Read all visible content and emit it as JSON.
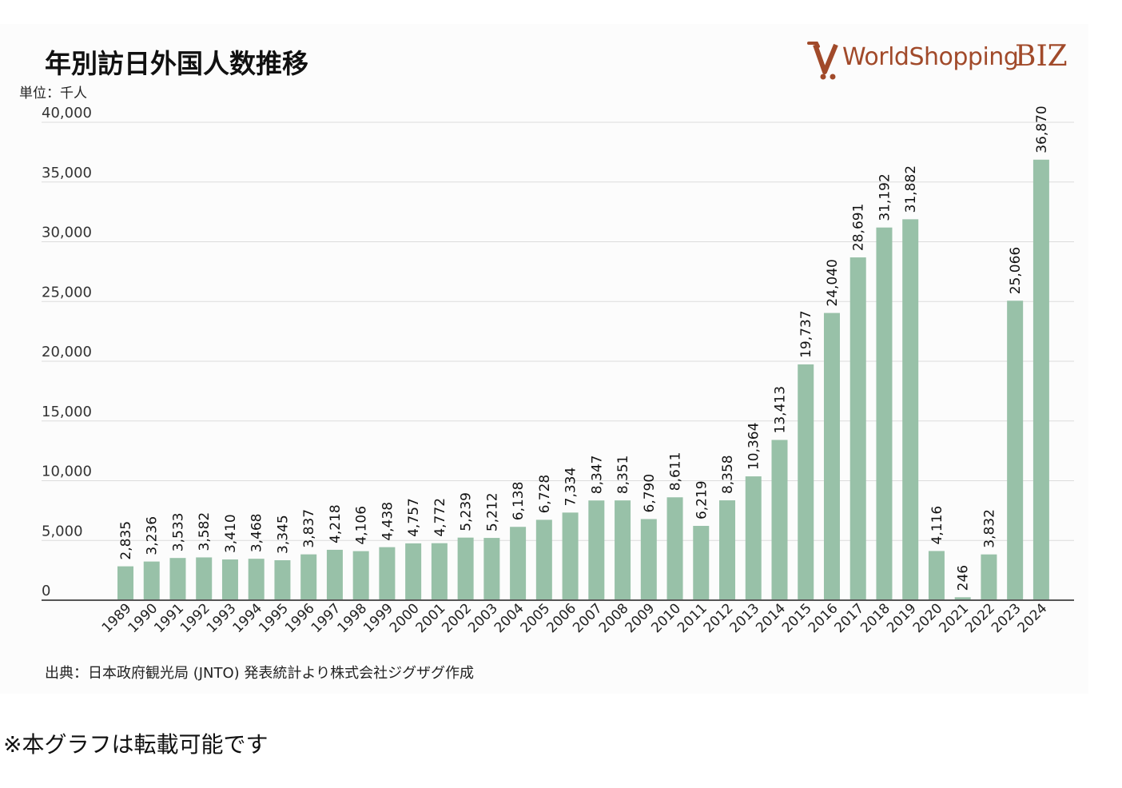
{
  "chart_data": {
    "type": "bar",
    "title": "年別訪日外国人数推移",
    "ylabel": "単位：千人",
    "xlabel": "",
    "ylim": [
      0,
      40000
    ],
    "yticks": [
      0,
      5000,
      10000,
      15000,
      20000,
      25000,
      30000,
      35000,
      40000
    ],
    "ytick_labels": [
      "0",
      "5,000",
      "10,000",
      "15,000",
      "20,000",
      "25,000",
      "30,000",
      "35,000",
      "40,000"
    ],
    "grid": true,
    "bar_color": "#98c1a8",
    "categories": [
      "1989",
      "1990",
      "1991",
      "1992",
      "1993",
      "1994",
      "1995",
      "1996",
      "1997",
      "1998",
      "1999",
      "2000",
      "2001",
      "2002",
      "2003",
      "2004",
      "2005",
      "2006",
      "2007",
      "2008",
      "2009",
      "2010",
      "2011",
      "2012",
      "2013",
      "2014",
      "2015",
      "2016",
      "2017",
      "2018",
      "2019",
      "2020",
      "2021",
      "2022",
      "2023",
      "2024"
    ],
    "values": [
      2835,
      3236,
      3533,
      3582,
      3410,
      3468,
      3345,
      3837,
      4218,
      4106,
      4438,
      4757,
      4772,
      5239,
      5212,
      6138,
      6728,
      7334,
      8347,
      8351,
      6790,
      8611,
      6219,
      8358,
      10364,
      13413,
      19737,
      24040,
      28691,
      31192,
      31882,
      4116,
      246,
      3832,
      25066,
      36870
    ],
    "data_labels": [
      "2,835",
      "3,236",
      "3,533",
      "3,582",
      "3,410",
      "3,468",
      "3,345",
      "3,837",
      "4,218",
      "4,106",
      "4,438",
      "4,757",
      "4,772",
      "5,239",
      "5,212",
      "6,138",
      "6,728",
      "7,334",
      "8,347",
      "8,351",
      "6,790",
      "8,611",
      "6,219",
      "8,358",
      "10,364",
      "13,413",
      "19,737",
      "24,040",
      "28,691",
      "31,192",
      "31,882",
      "4,116",
      "246",
      "3,832",
      "25,066",
      "36,870"
    ]
  },
  "logo": {
    "text_main": "WorldShopping",
    "text_suffix": "BIZ",
    "color": "#a14a2a"
  },
  "source_text": "出典：日本政府観光局 (JNTO) 発表統計より株式会社ジグザグ作成",
  "note_text": "※本グラフは転載可能です"
}
